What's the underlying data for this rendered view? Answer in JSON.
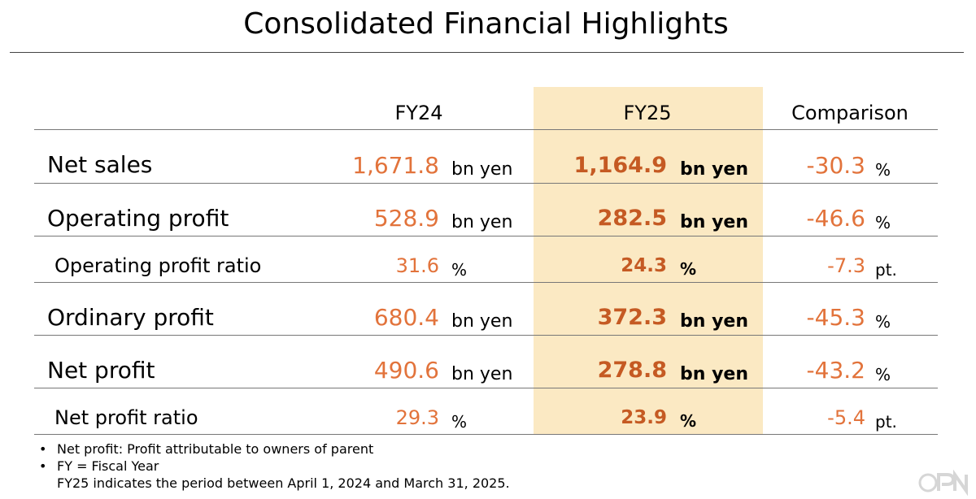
{
  "title": "Consolidated Financial Highlights",
  "columns": {
    "fy24": "FY24",
    "fy25": "FY25",
    "comparison": "Comparison"
  },
  "rows": [
    {
      "label": "Net sales",
      "fy24": "1,671.8",
      "fy24_unit": "bn yen",
      "fy25": "1,164.9",
      "fy25_unit": "bn yen",
      "cmp": "-30.3",
      "cmp_unit": "%"
    },
    {
      "label": "Operating profit",
      "fy24": "528.9",
      "fy24_unit": "bn yen",
      "fy25": "282.5",
      "fy25_unit": "bn yen",
      "cmp": "-46.6",
      "cmp_unit": "%"
    },
    {
      "label": "Operating profit ratio",
      "fy24": "31.6",
      "fy24_unit": "%",
      "fy25": "24.3",
      "fy25_unit": "%",
      "cmp": "-7.3",
      "cmp_unit": "pt."
    },
    {
      "label": "Ordinary profit",
      "fy24": "680.4",
      "fy24_unit": "bn yen",
      "fy25": "372.3",
      "fy25_unit": "bn yen",
      "cmp": "-45.3",
      "cmp_unit": "%"
    },
    {
      "label": "Net profit",
      "fy24": "490.6",
      "fy24_unit": "bn yen",
      "fy25": "278.8",
      "fy25_unit": "bn yen",
      "cmp": "-43.2",
      "cmp_unit": "%"
    },
    {
      "label": "Net profit ratio",
      "fy24": "29.3",
      "fy24_unit": "%",
      "fy25": "23.9",
      "fy25_unit": "%",
      "cmp": "-5.4",
      "cmp_unit": "pt."
    }
  ],
  "notes": {
    "bullet": "•",
    "line1": "Net profit: Profit attributable to owners of parent",
    "line2": "FY = Fiscal Year",
    "line3": "FY25 indicates the period between April 1, 2024 and March 31, 2025."
  },
  "colors": {
    "accent": "#e2733b",
    "accent_bold": "#c55a23",
    "highlight": "#fbe9c3"
  }
}
